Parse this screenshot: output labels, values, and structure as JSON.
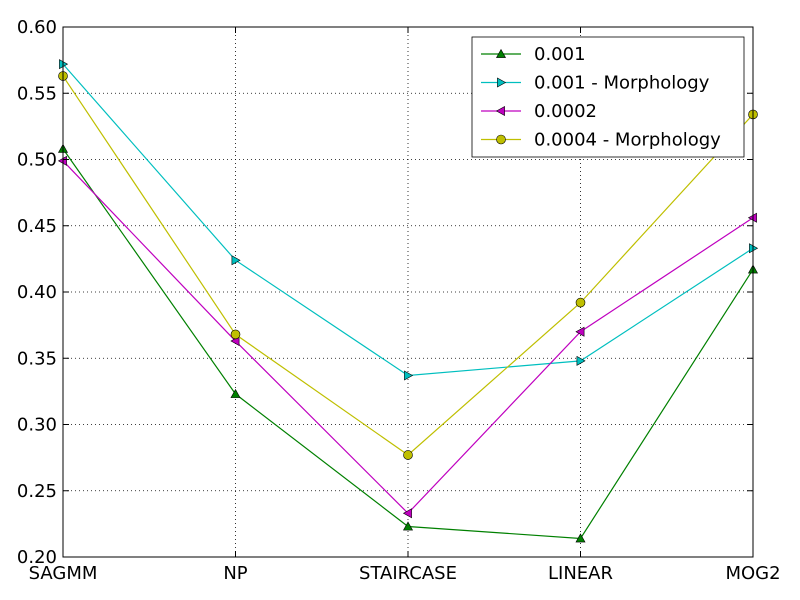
{
  "chart_data": {
    "type": "line",
    "title": "",
    "xlabel": "",
    "ylabel": "",
    "categories": [
      "SAGMM",
      "NP",
      "STAIRCASE",
      "LINEAR",
      "MOG2"
    ],
    "ylim": [
      0.2,
      0.6
    ],
    "yticks": [
      "0.20",
      "0.25",
      "0.30",
      "0.35",
      "0.40",
      "0.45",
      "0.50",
      "0.55",
      "0.60"
    ],
    "grid": true,
    "legend_position": "top-right",
    "series": [
      {
        "name": "0.001",
        "values": [
          0.508,
          0.323,
          0.223,
          0.214,
          0.417
        ],
        "color": "#008000",
        "marker": "triangle-up"
      },
      {
        "name": "0.001 - Morphology",
        "values": [
          0.572,
          0.424,
          0.337,
          0.348,
          0.433
        ],
        "color": "#00bfbf",
        "marker": "triangle-right"
      },
      {
        "name": "0.0002",
        "values": [
          0.499,
          0.363,
          0.233,
          0.37,
          0.456
        ],
        "color": "#bf00bf",
        "marker": "triangle-left"
      },
      {
        "name": "0.0004 - Morphology",
        "values": [
          0.563,
          0.368,
          0.277,
          0.392,
          0.534
        ],
        "color": "#bfbf00",
        "marker": "circle"
      }
    ]
  }
}
